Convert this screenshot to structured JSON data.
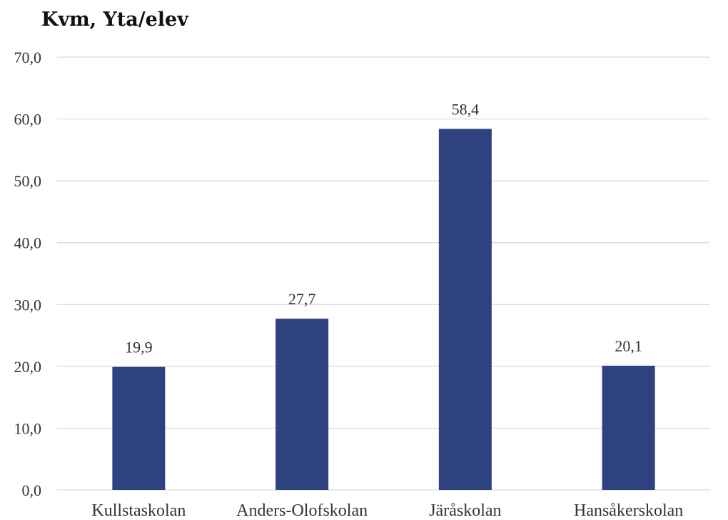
{
  "chart_data": {
    "type": "bar",
    "title": "Kvm, Yta/elev",
    "xlabel": "",
    "ylabel": "",
    "categories": [
      "Kullstaskolan",
      "Anders-Olofskolan",
      "Järåskolan",
      "Hansåkerskolan"
    ],
    "values": [
      19.9,
      27.7,
      58.4,
      20.1
    ],
    "value_labels": [
      "19,9",
      "27,7",
      "58,4",
      "20,1"
    ],
    "ylim": [
      0,
      70
    ],
    "yticks": [
      0,
      10,
      20,
      30,
      40,
      50,
      60,
      70
    ],
    "ytick_labels": [
      "0,0",
      "10,0",
      "20,0",
      "30,0",
      "40,0",
      "50,0",
      "60,0",
      "70,0"
    ],
    "grid": true,
    "legend": "none",
    "bar_color": "#2e4280"
  }
}
